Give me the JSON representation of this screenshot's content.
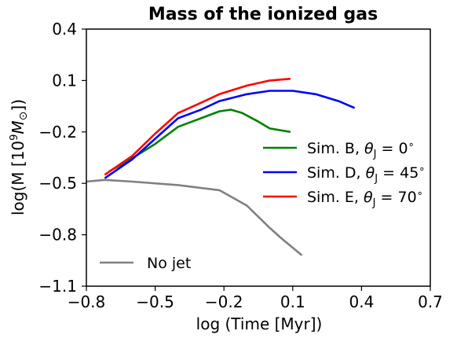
{
  "chart_data": {
    "type": "line",
    "title": "Mass of the ionized gas",
    "xlabel": "log (Time [Myr])",
    "ylabel": "log(M [10⁹M⊙])",
    "xlim": [
      -0.8,
      0.7
    ],
    "ylim": [
      -1.1,
      0.4
    ],
    "xticks": [
      -0.8,
      -0.5,
      -0.2,
      0.1,
      0.4,
      0.7
    ],
    "xtick_labels": [
      "−0.8",
      "−0.5",
      "−0.2",
      "0.1",
      "0.4",
      "0.7"
    ],
    "yticks": [
      -1.1,
      -0.8,
      -0.5,
      -0.2,
      0.1,
      0.4
    ],
    "ytick_labels": [
      "−1.1",
      "−0.8",
      "−0.5",
      "−0.2",
      "0.1",
      "0.4"
    ],
    "grid": false,
    "series": [
      {
        "name": "Sim. B, θJ = 0°",
        "color": "#008000",
        "x": [
          -0.7,
          -0.62,
          -0.5,
          -0.4,
          -0.3,
          -0.22,
          -0.17,
          -0.12,
          -0.05,
          0.0,
          0.09
        ],
        "y": [
          -0.43,
          -0.37,
          -0.27,
          -0.17,
          -0.12,
          -0.08,
          -0.07,
          -0.09,
          -0.14,
          -0.18,
          -0.2
        ]
      },
      {
        "name": "Sim. D, θJ = 45°",
        "color": "#0000ff",
        "x": [
          -0.72,
          -0.6,
          -0.5,
          -0.4,
          -0.3,
          -0.22,
          -0.1,
          0.0,
          0.1,
          0.2,
          0.3,
          0.37
        ],
        "y": [
          -0.47,
          -0.36,
          -0.24,
          -0.12,
          -0.07,
          -0.02,
          0.02,
          0.04,
          0.04,
          0.02,
          -0.02,
          -0.06
        ]
      },
      {
        "name": "Sim. E, θJ = 70°",
        "color": "#ff0000",
        "x": [
          -0.72,
          -0.6,
          -0.5,
          -0.4,
          -0.3,
          -0.22,
          -0.1,
          0.0,
          0.09
        ],
        "y": [
          -0.45,
          -0.34,
          -0.21,
          -0.09,
          -0.03,
          0.02,
          0.07,
          0.1,
          0.11
        ]
      },
      {
        "name": "No jet",
        "color": "#808080",
        "x": [
          -0.8,
          -0.72,
          -0.6,
          -0.4,
          -0.22,
          -0.1,
          0.0,
          0.05,
          0.14
        ],
        "y": [
          -0.49,
          -0.48,
          -0.49,
          -0.51,
          -0.54,
          -0.63,
          -0.76,
          -0.82,
          -0.92
        ]
      }
    ],
    "legend_upper": {
      "placement": "right",
      "entries": [
        {
          "label": "Sim. B, θJ = 0°",
          "prefix": "Sim. B, ",
          "angle": "0",
          "color": "#008000"
        },
        {
          "label": "Sim. D, θJ = 45°",
          "prefix": "Sim. D, ",
          "angle": "45",
          "color": "#0000ff"
        },
        {
          "label": "Sim. E, θJ = 70°",
          "prefix": "Sim. E, ",
          "angle": "70",
          "color": "#ff0000"
        }
      ]
    },
    "legend_lower": {
      "placement": "lower-left",
      "entries": [
        {
          "label": "No jet",
          "color": "#808080"
        }
      ]
    }
  }
}
